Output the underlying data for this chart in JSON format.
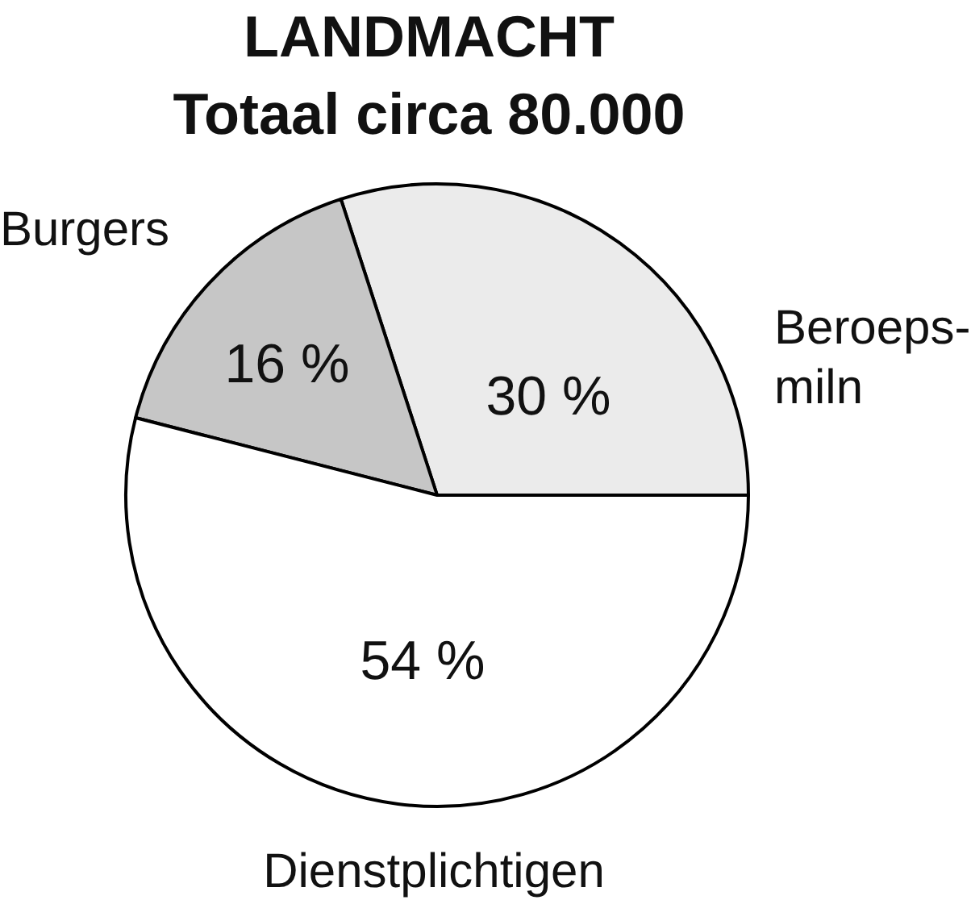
{
  "chart_data": {
    "type": "pie",
    "title": "LANDMACHT",
    "subtitle": "Totaal circa 80.000",
    "categories": [
      "Beroeps-miln",
      "Burgers",
      "Dienstplichtigen"
    ],
    "values": [
      30,
      16,
      54
    ],
    "colors": [
      "#ebebeb",
      "#c6c6c6",
      "#ffffff"
    ],
    "value_labels": [
      "30 %",
      "16 %",
      "54 %"
    ]
  }
}
